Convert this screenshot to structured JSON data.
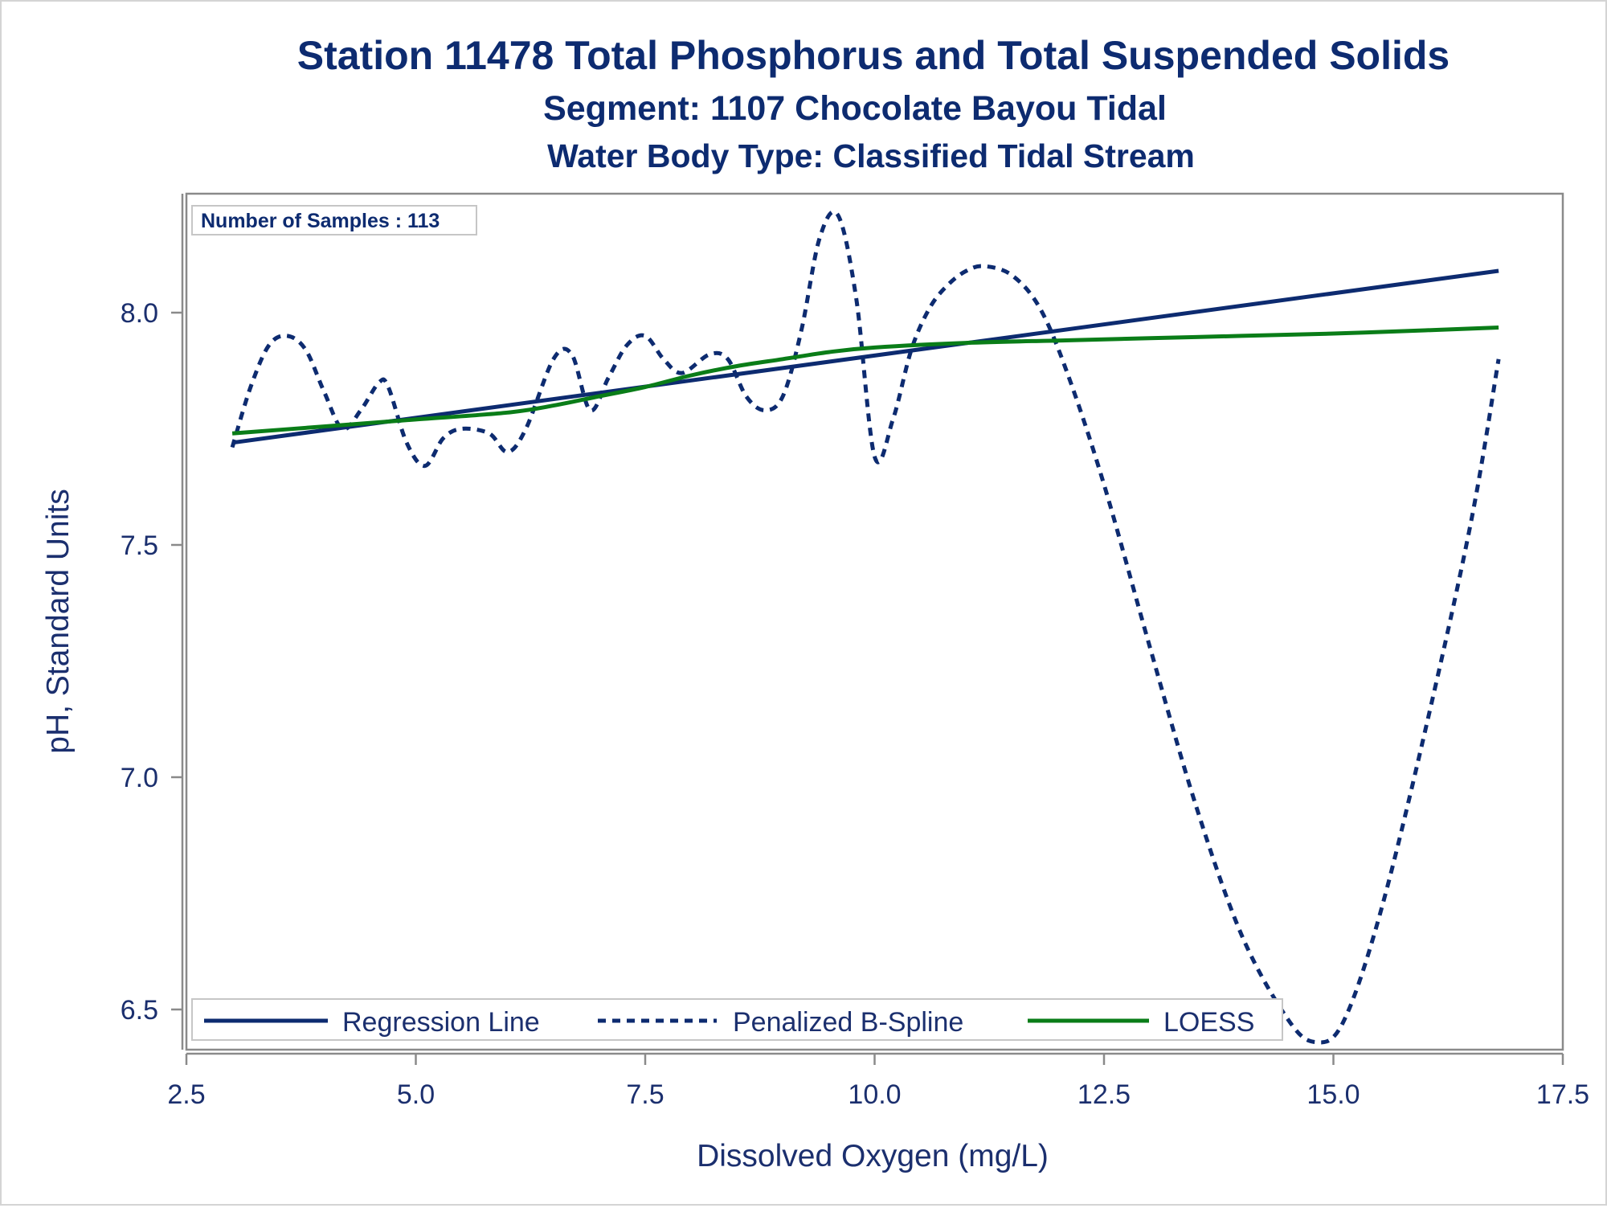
{
  "chart_data": {
    "type": "line",
    "title": "Station 11478  Total Phosphorus and Total Suspended Solids",
    "subtitle": "Segment: 1107  Chocolate Bayou Tidal",
    "subtitle2": "Water Body Type: Classified Tidal Stream",
    "xlabel": "Dissolved Oxygen (mg/L)",
    "ylabel": "pH, Standard Units",
    "xlim": [
      2.5,
      17.5
    ],
    "ylim": [
      6.42,
      8.25
    ],
    "xticks": [
      "2.5",
      "5.0",
      "7.5",
      "10.0",
      "12.5",
      "15.0",
      "17.5"
    ],
    "yticks": [
      "6.5",
      "7.0",
      "7.5",
      "8.0"
    ],
    "inset_text": "Number of Samples : 113",
    "legend": {
      "placement": "bottom-left",
      "items": [
        "Regression Line",
        "Penalized B-Spline",
        "LOESS"
      ]
    },
    "series": [
      {
        "name": "Regression Line",
        "color": "#0d2b70",
        "style": "solid",
        "x": [
          3.0,
          16.8
        ],
        "y": [
          7.72,
          8.09
        ]
      },
      {
        "name": "Penalized B-Spline",
        "color": "#0d2b70",
        "style": "dashed",
        "x": [
          3.0,
          3.2,
          3.4,
          3.6,
          3.8,
          4.0,
          4.2,
          4.4,
          4.6,
          4.7,
          4.9,
          5.1,
          5.3,
          5.5,
          5.8,
          6.0,
          6.2,
          6.5,
          6.7,
          6.9,
          7.1,
          7.3,
          7.5,
          7.7,
          7.9,
          8.2,
          8.4,
          8.6,
          8.8,
          9.0,
          9.2,
          9.4,
          9.6,
          9.8,
          10.0,
          10.2,
          10.4,
          10.6,
          10.8,
          11.0,
          11.2,
          11.5,
          11.8,
          12.1,
          12.5,
          13.0,
          13.5,
          14.0,
          14.5,
          14.8,
          15.1,
          15.5,
          16.0,
          16.5,
          16.8
        ],
        "y": [
          7.71,
          7.84,
          7.93,
          7.95,
          7.92,
          7.83,
          7.75,
          7.79,
          7.85,
          7.84,
          7.72,
          7.67,
          7.73,
          7.75,
          7.74,
          7.7,
          7.75,
          7.9,
          7.91,
          7.79,
          7.86,
          7.93,
          7.95,
          7.9,
          7.87,
          7.91,
          7.9,
          7.82,
          7.79,
          7.82,
          7.96,
          8.16,
          8.21,
          8.03,
          7.69,
          7.77,
          7.92,
          8.01,
          8.06,
          8.09,
          8.1,
          8.08,
          8.01,
          7.87,
          7.63,
          7.28,
          6.94,
          6.66,
          6.48,
          6.43,
          6.47,
          6.7,
          7.1,
          7.55,
          7.9
        ]
      },
      {
        "name": "LOESS",
        "color": "#0a7d18",
        "style": "solid",
        "x": [
          3.0,
          4.0,
          5.0,
          6.0,
          6.5,
          7.0,
          7.5,
          8.0,
          8.5,
          9.0,
          9.5,
          10.0,
          11.0,
          12.0,
          13.0,
          14.0,
          15.0,
          16.0,
          16.8
        ],
        "y": [
          7.74,
          7.755,
          7.77,
          7.785,
          7.8,
          7.82,
          7.84,
          7.865,
          7.885,
          7.9,
          7.915,
          7.925,
          7.935,
          7.94,
          7.945,
          7.95,
          7.955,
          7.962,
          7.968
        ]
      }
    ]
  }
}
